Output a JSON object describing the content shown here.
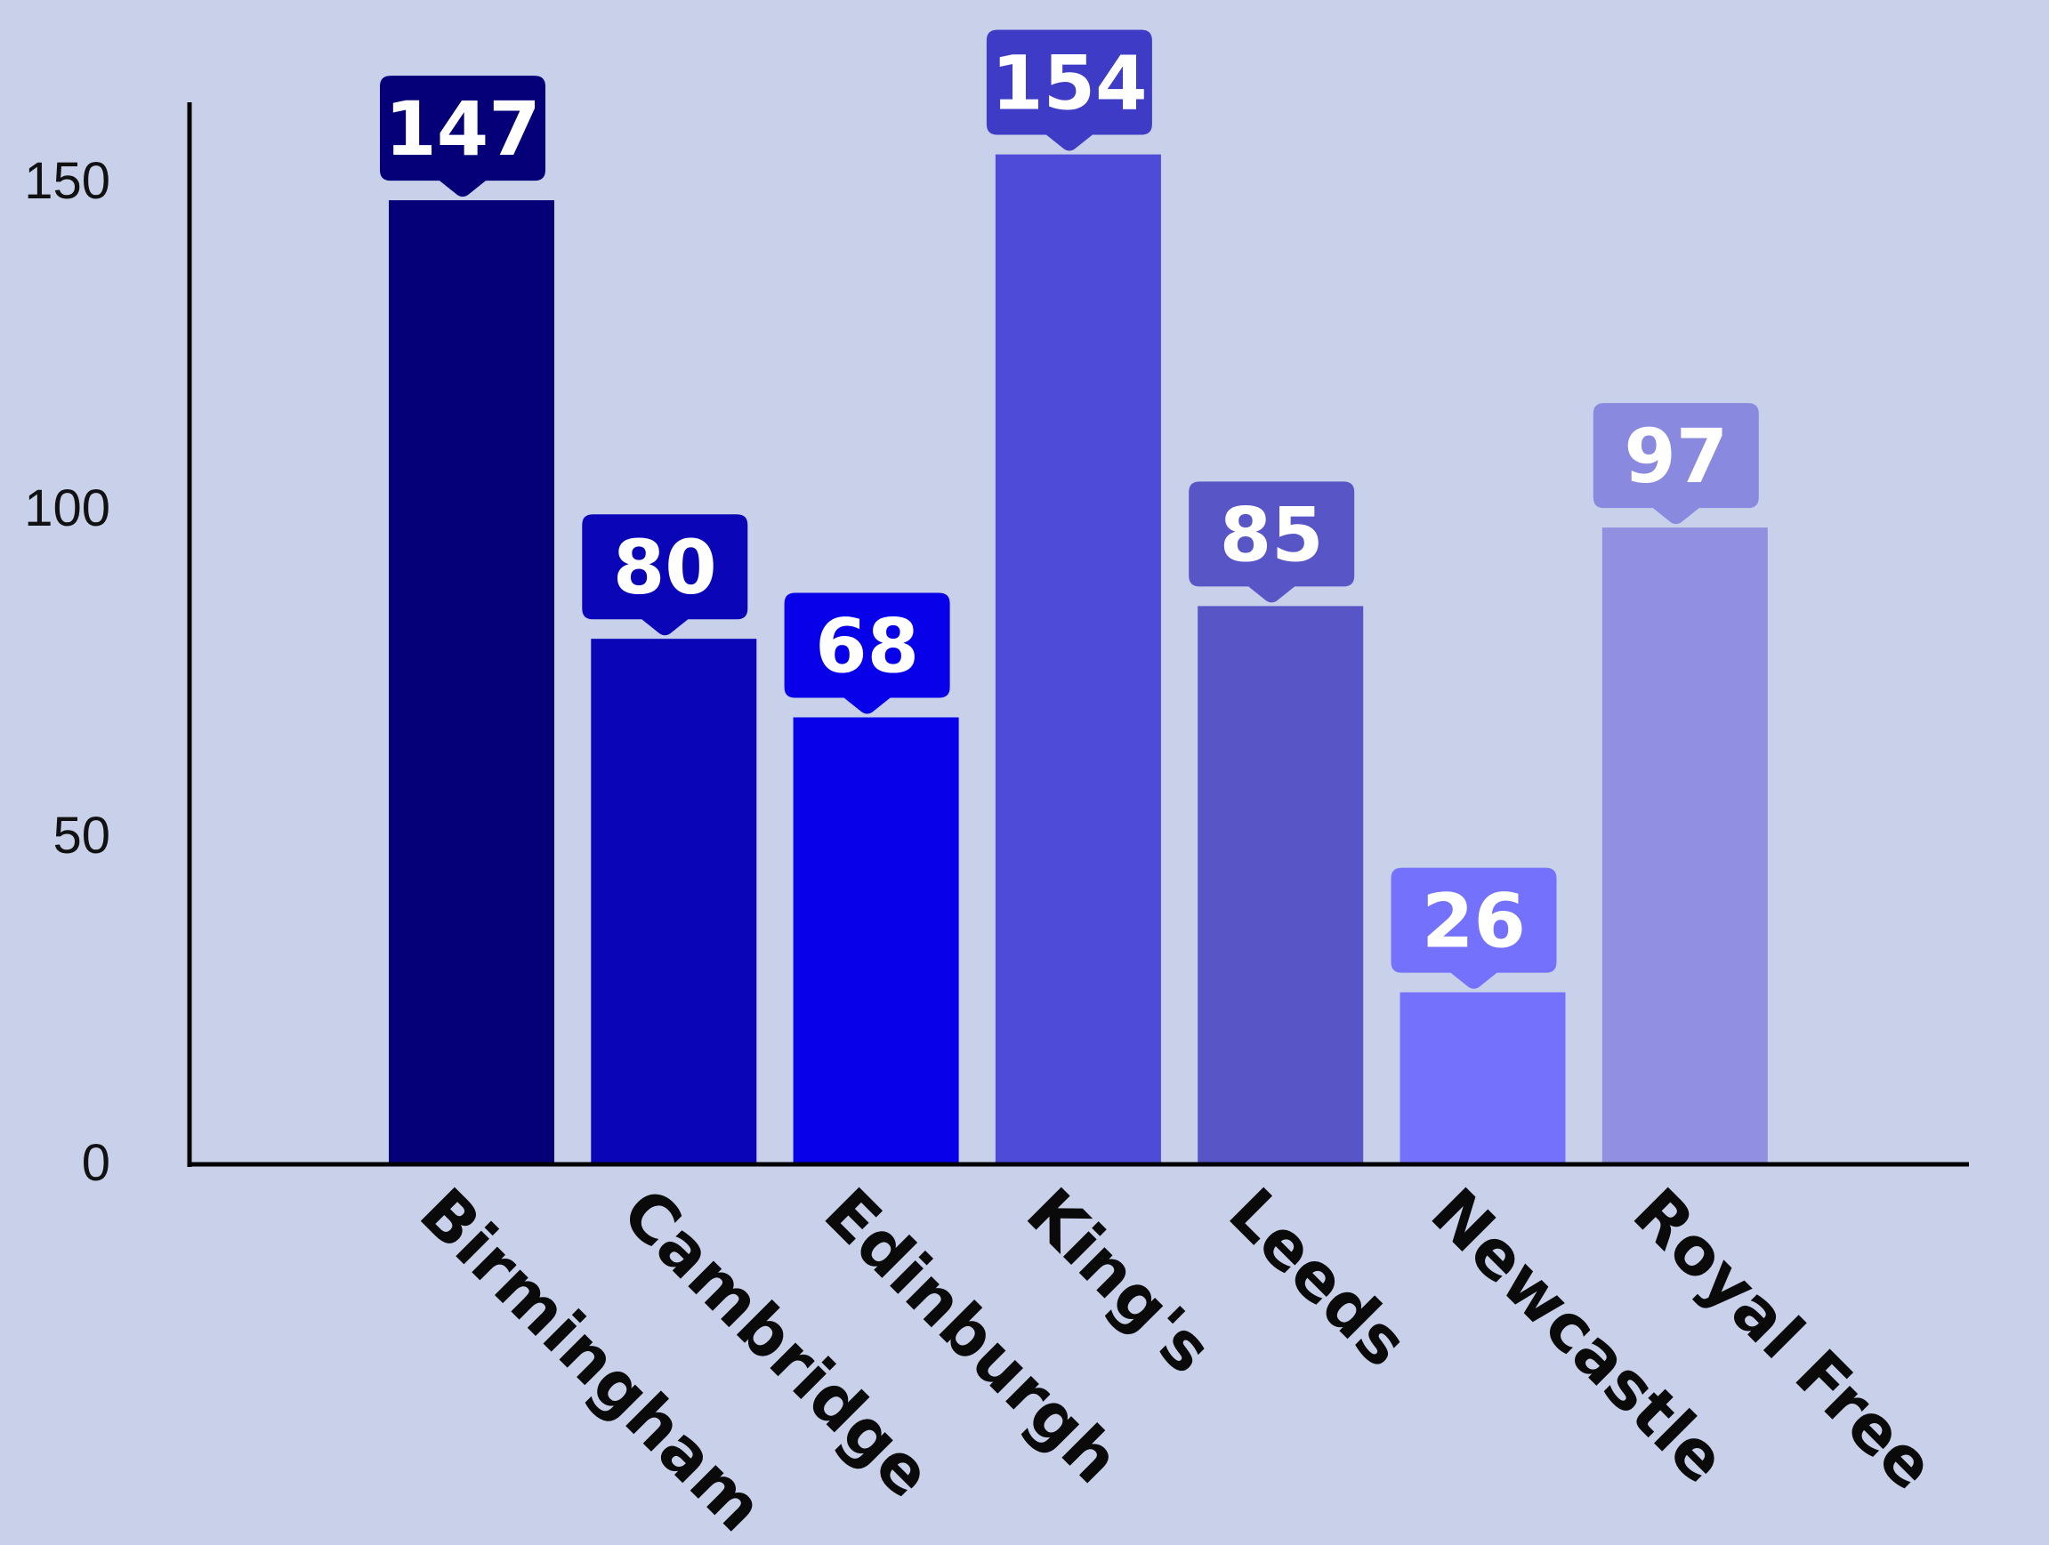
{
  "chart_data": {
    "type": "bar",
    "categories": [
      "Birmingham",
      "Cambridge",
      "Edinburgh",
      "King's",
      "Leeds",
      "Newcastle",
      "Royal Free"
    ],
    "values": [
      147,
      80,
      68,
      154,
      85,
      26,
      97
    ],
    "data_labels": [
      "147",
      "80",
      "68",
      "154",
      "85",
      "26",
      "97"
    ],
    "colors": [
      "#050078",
      "#0a06b8",
      "#0800e8",
      "#4d4bd8",
      "#5856c7",
      "#7471fc",
      "#908fe0"
    ],
    "label_box_colors": [
      "#050078",
      "#0a06b8",
      "#0800e8",
      "#3e3cc6",
      "#5856c7",
      "#7471fc",
      "#8a89e0"
    ],
    "ylim": [
      0,
      160
    ],
    "yticks": [
      0,
      50,
      100,
      150
    ],
    "ytick_labels": [
      "0",
      "50",
      "100",
      "150"
    ],
    "title": "",
    "xlabel": "",
    "ylabel": "",
    "grid": false,
    "legend": "none",
    "background": "#c8d1e9"
  }
}
